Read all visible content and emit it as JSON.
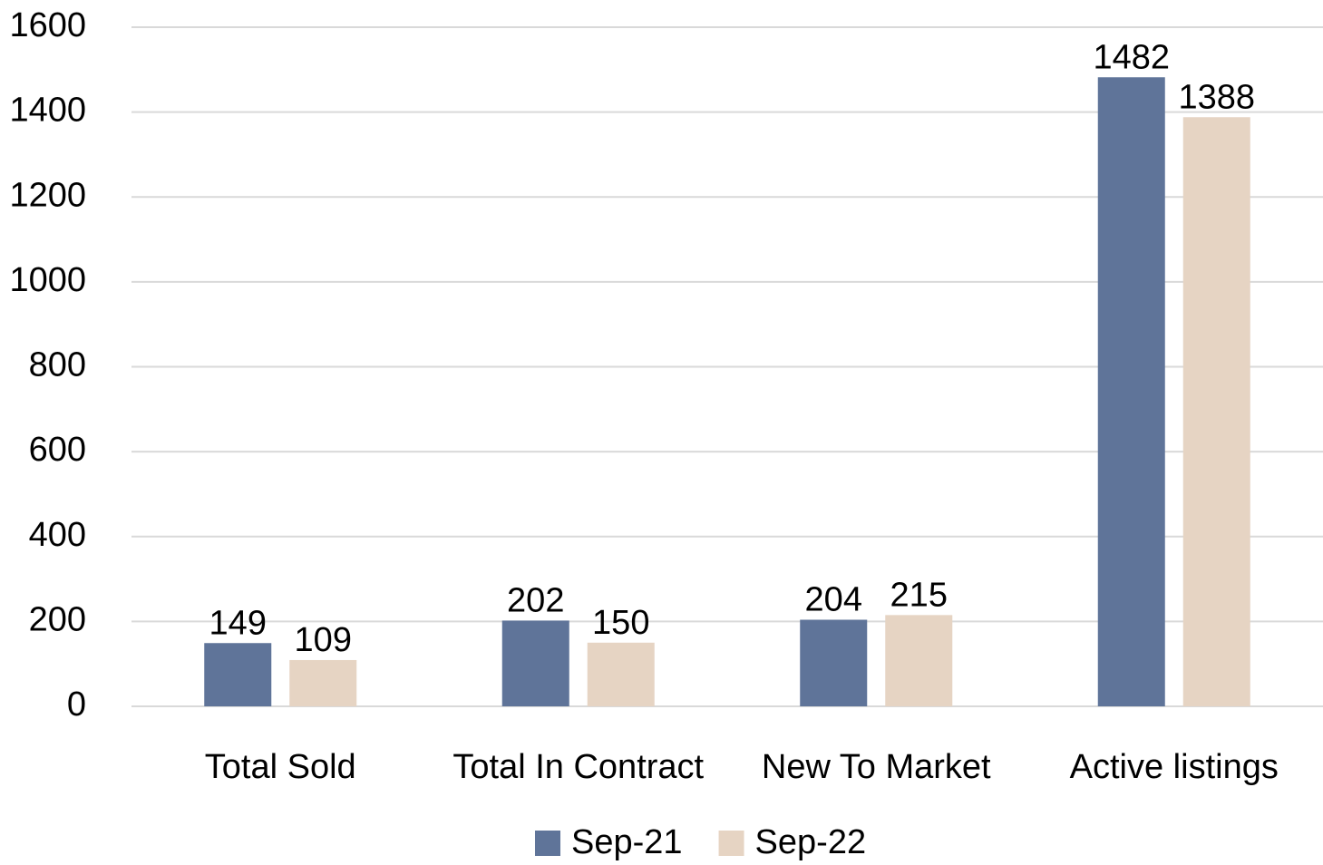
{
  "chart_data": {
    "type": "bar",
    "categories": [
      "Total Sold",
      "Total In Contract",
      "New To Market",
      "Active listings"
    ],
    "series": [
      {
        "name": "Sep-21",
        "color": "#5f7499",
        "values": [
          149,
          202,
          204,
          1482
        ]
      },
      {
        "name": "Sep-22",
        "color": "#e6d4c3",
        "values": [
          109,
          150,
          215,
          1388
        ]
      }
    ],
    "ylim": [
      0,
      1600
    ],
    "yticks": [
      0,
      200,
      400,
      600,
      800,
      1000,
      1200,
      1400,
      1600
    ],
    "grid": true,
    "legend": "bottom"
  }
}
